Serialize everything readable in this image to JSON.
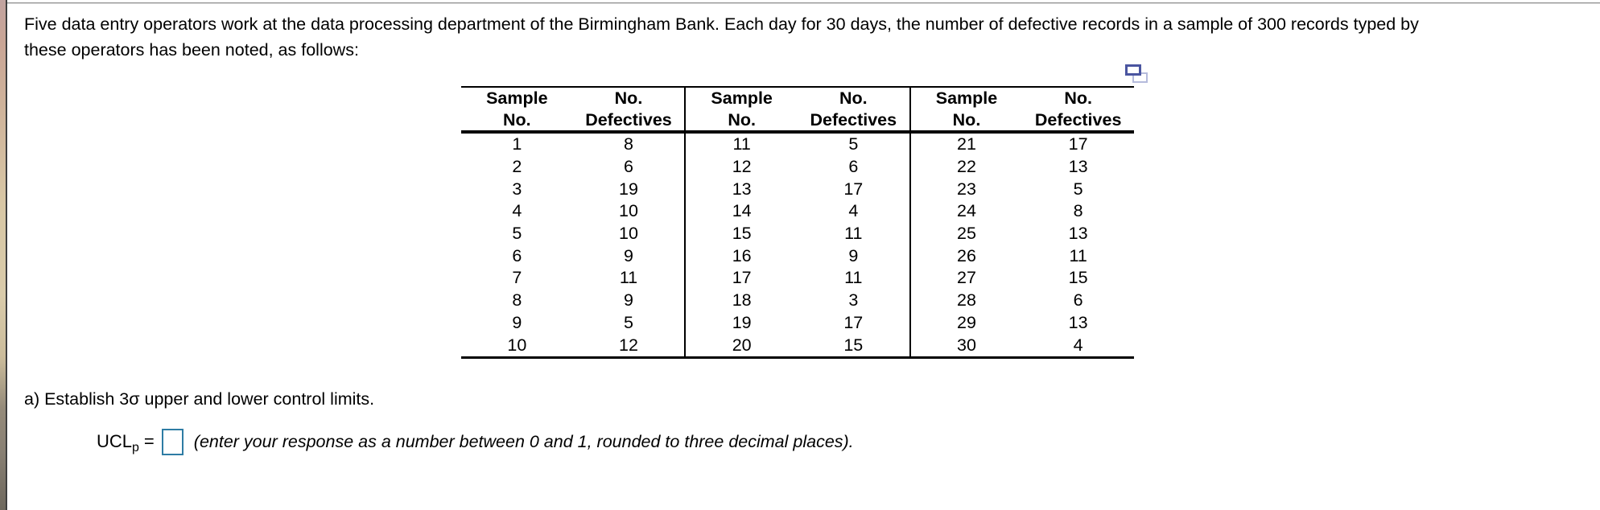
{
  "paragraph": {
    "line1": "Five data entry operators work at the data processing department of the Birmingham Bank. Each day for 30 days, the number of defective records in a sample of 300 records typed by",
    "line2": "these operators has been noted, as follows:"
  },
  "icons": {
    "popup_table_icon": "open-popup-table-icon",
    "icon_front_color": "#4a55a0",
    "icon_back_color": "#b5bbdc"
  },
  "table": {
    "headers": {
      "col1_line1": "Sample",
      "col1_line2": "No.",
      "col2_line1": "No.",
      "col2_line2": "Defectives"
    },
    "groups": [
      {
        "rows": [
          [
            1,
            8
          ],
          [
            2,
            6
          ],
          [
            3,
            19
          ],
          [
            4,
            10
          ],
          [
            5,
            10
          ],
          [
            6,
            9
          ],
          [
            7,
            11
          ],
          [
            8,
            9
          ],
          [
            9,
            5
          ],
          [
            10,
            12
          ]
        ]
      },
      {
        "rows": [
          [
            11,
            5
          ],
          [
            12,
            6
          ],
          [
            13,
            17
          ],
          [
            14,
            4
          ],
          [
            15,
            11
          ],
          [
            16,
            9
          ],
          [
            17,
            11
          ],
          [
            18,
            3
          ],
          [
            19,
            17
          ],
          [
            20,
            15
          ]
        ]
      },
      {
        "rows": [
          [
            21,
            17
          ],
          [
            22,
            13
          ],
          [
            23,
            5
          ],
          [
            24,
            8
          ],
          [
            25,
            13
          ],
          [
            26,
            11
          ],
          [
            27,
            15
          ],
          [
            28,
            6
          ],
          [
            29,
            13
          ],
          [
            30,
            4
          ]
        ]
      }
    ]
  },
  "question": {
    "part_a": "a) Establish 3σ upper and lower control limits.",
    "ucl_label": "UCL",
    "ucl_sub": "p",
    "equals": "=",
    "input_value": "",
    "instruction": "(enter your response as a number between 0 and 1, rounded to three decimal places)."
  },
  "colors": {
    "answer_input_border": "#2e7ca4",
    "table_line": "#000000",
    "top_rule": "#8f8f8f"
  }
}
